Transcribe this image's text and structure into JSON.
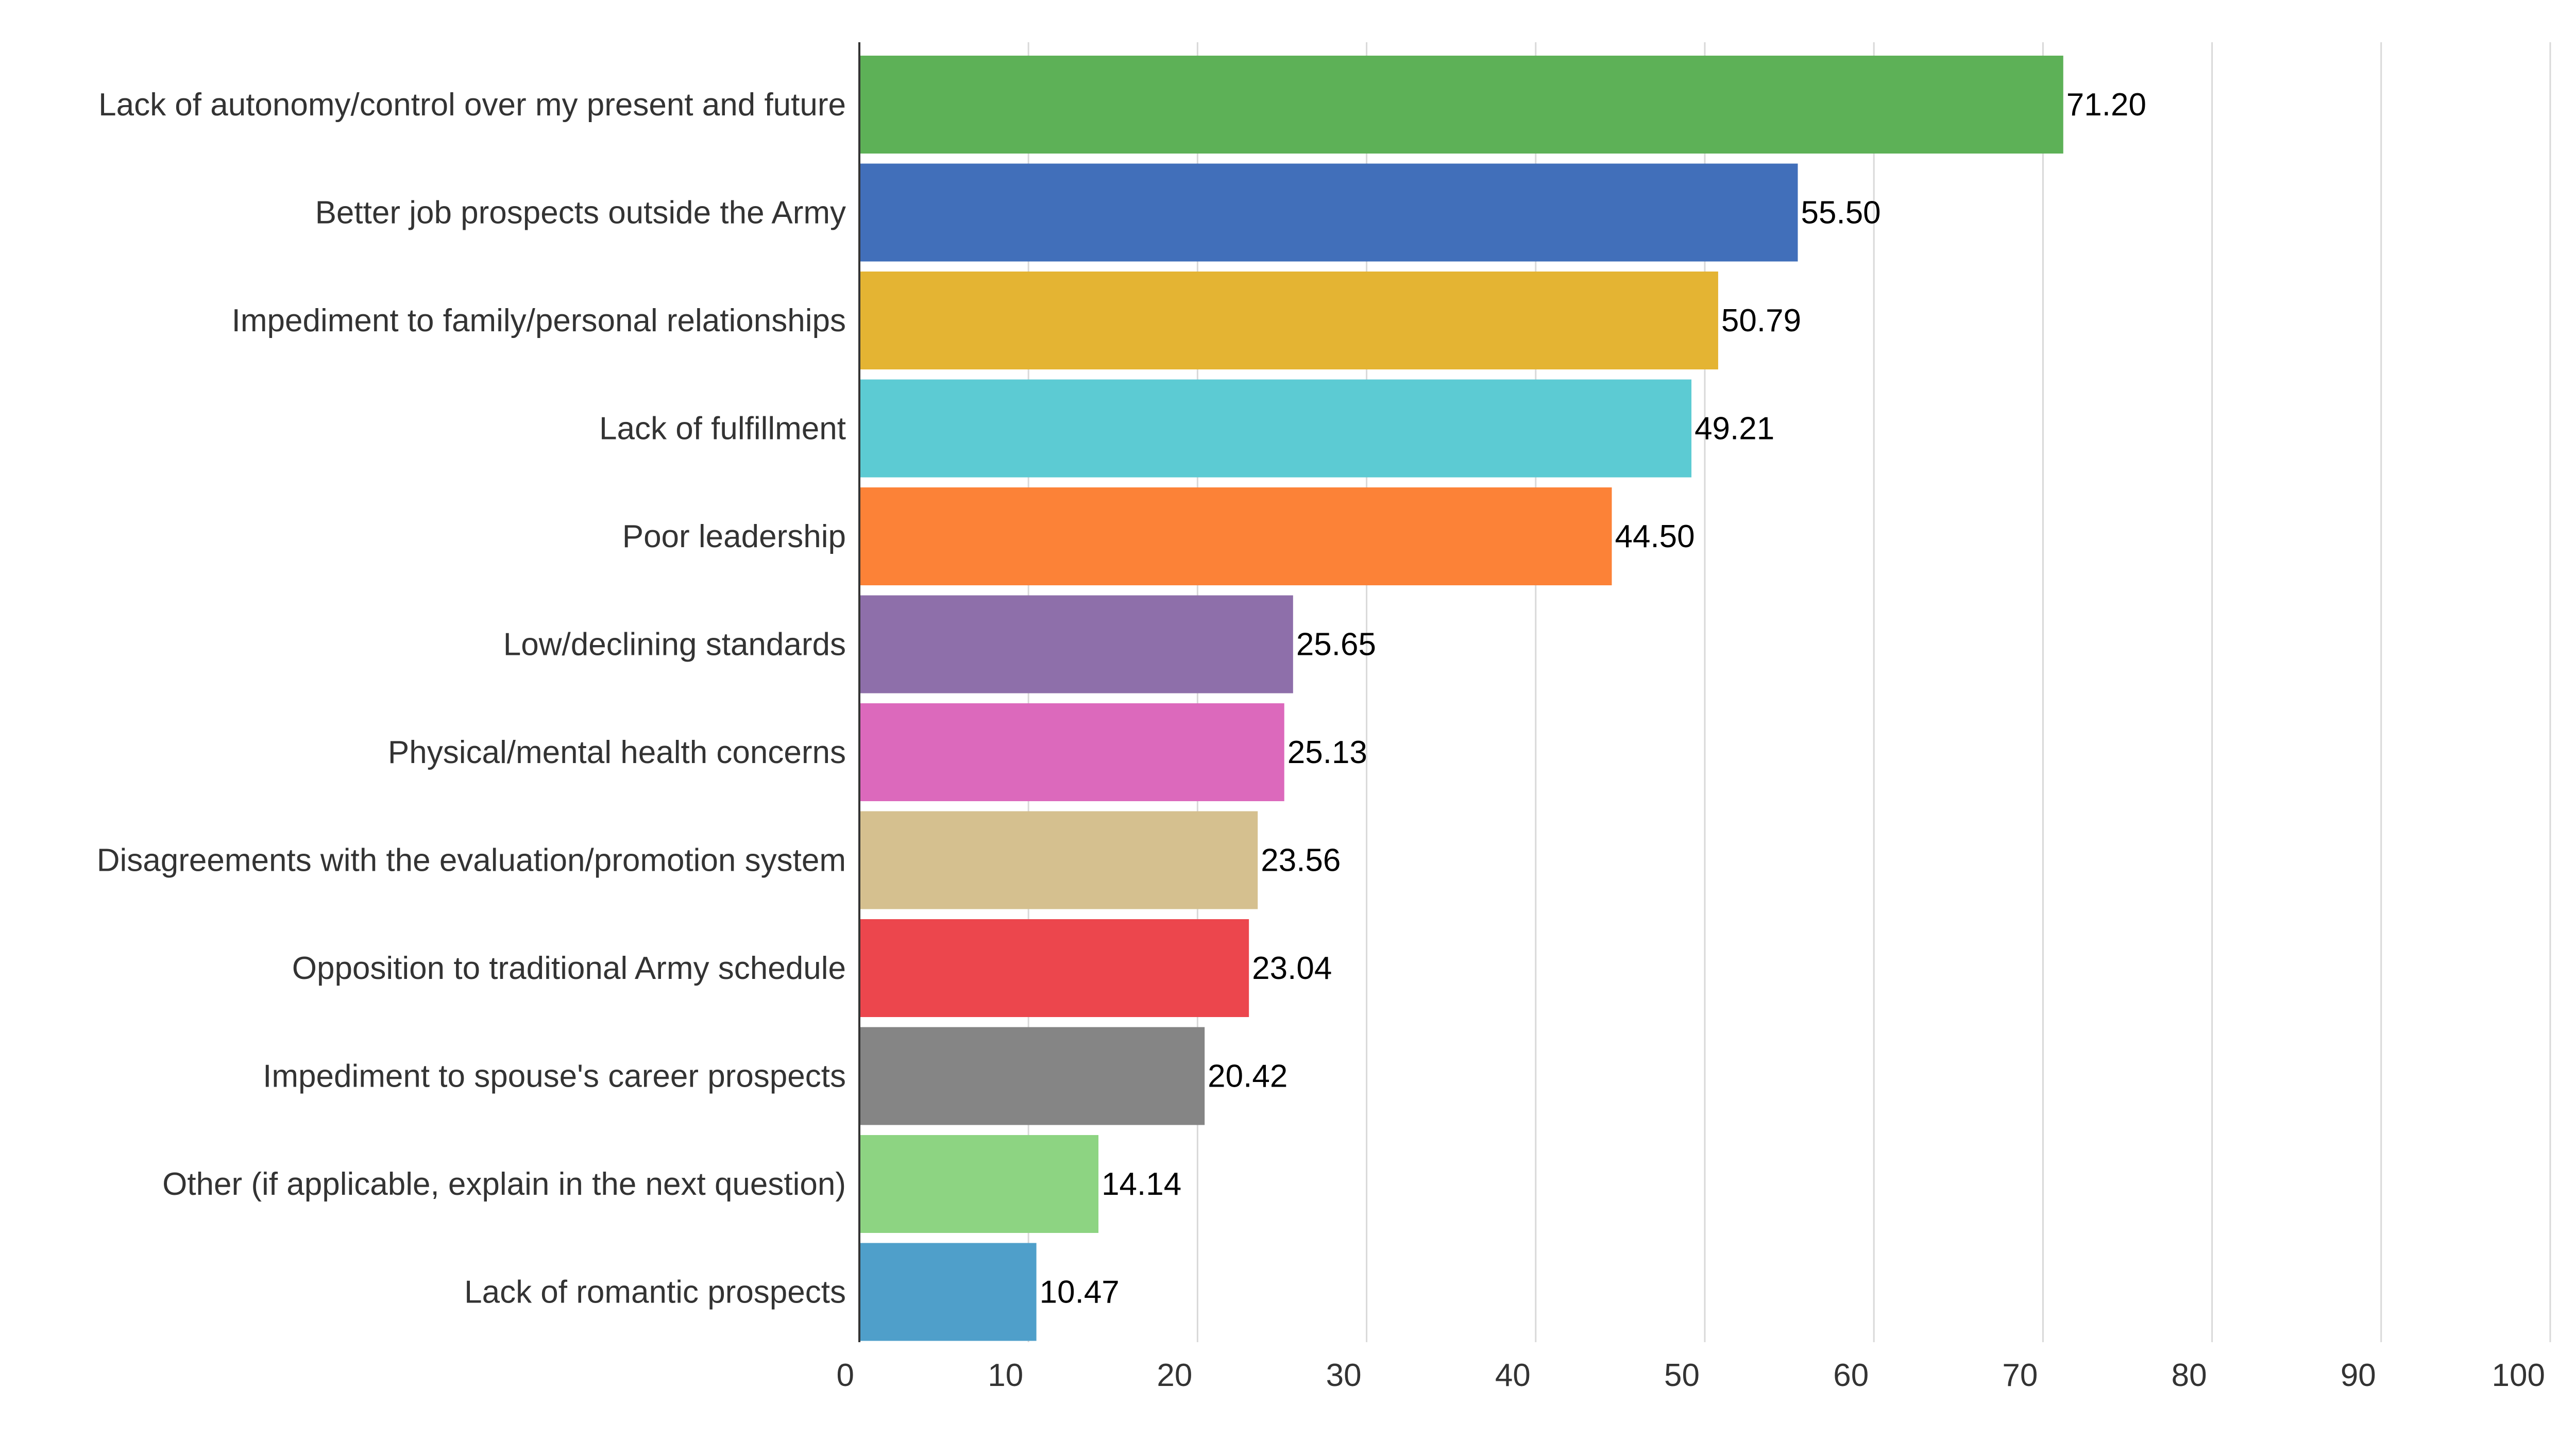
{
  "chart_data": {
    "type": "bar",
    "orientation": "horizontal",
    "title": "",
    "xlabel": "",
    "ylabel": "",
    "xlim": [
      0,
      100
    ],
    "xticks": [
      0,
      10,
      20,
      30,
      40,
      50,
      60,
      70,
      80,
      90,
      100
    ],
    "grid": "vertical",
    "legend": "none",
    "categories": [
      "Lack of autonomy/control over my present and future",
      "Better job prospects outside the Army",
      "Impediment to family/personal relationships",
      "Lack of fulfillment",
      "Poor leadership",
      "Low/declining standards",
      "Physical/mental health concerns",
      "Disagreements with the evaluation/promotion system",
      "Opposition to traditional Army schedule",
      "Impediment to spouse's career prospects",
      "Other (if applicable, explain in the next question)",
      "Lack of romantic prospects"
    ],
    "values": [
      71.2,
      55.5,
      50.79,
      49.21,
      44.5,
      25.65,
      25.13,
      23.56,
      23.04,
      20.42,
      14.14,
      10.47
    ],
    "value_labels": [
      "71.20",
      "55.50",
      "50.79",
      "49.21",
      "44.50",
      "25.65",
      "25.13",
      "23.56",
      "23.04",
      "20.42",
      "14.14",
      "10.47"
    ],
    "colors": [
      "#5db157",
      "#416fba",
      "#e4b433",
      "#5ccbd3",
      "#fc8237",
      "#8e6faa",
      "#dc69bc",
      "#d5c08f",
      "#ec464d",
      "#858585",
      "#8dd482",
      "#4f9fca"
    ]
  }
}
